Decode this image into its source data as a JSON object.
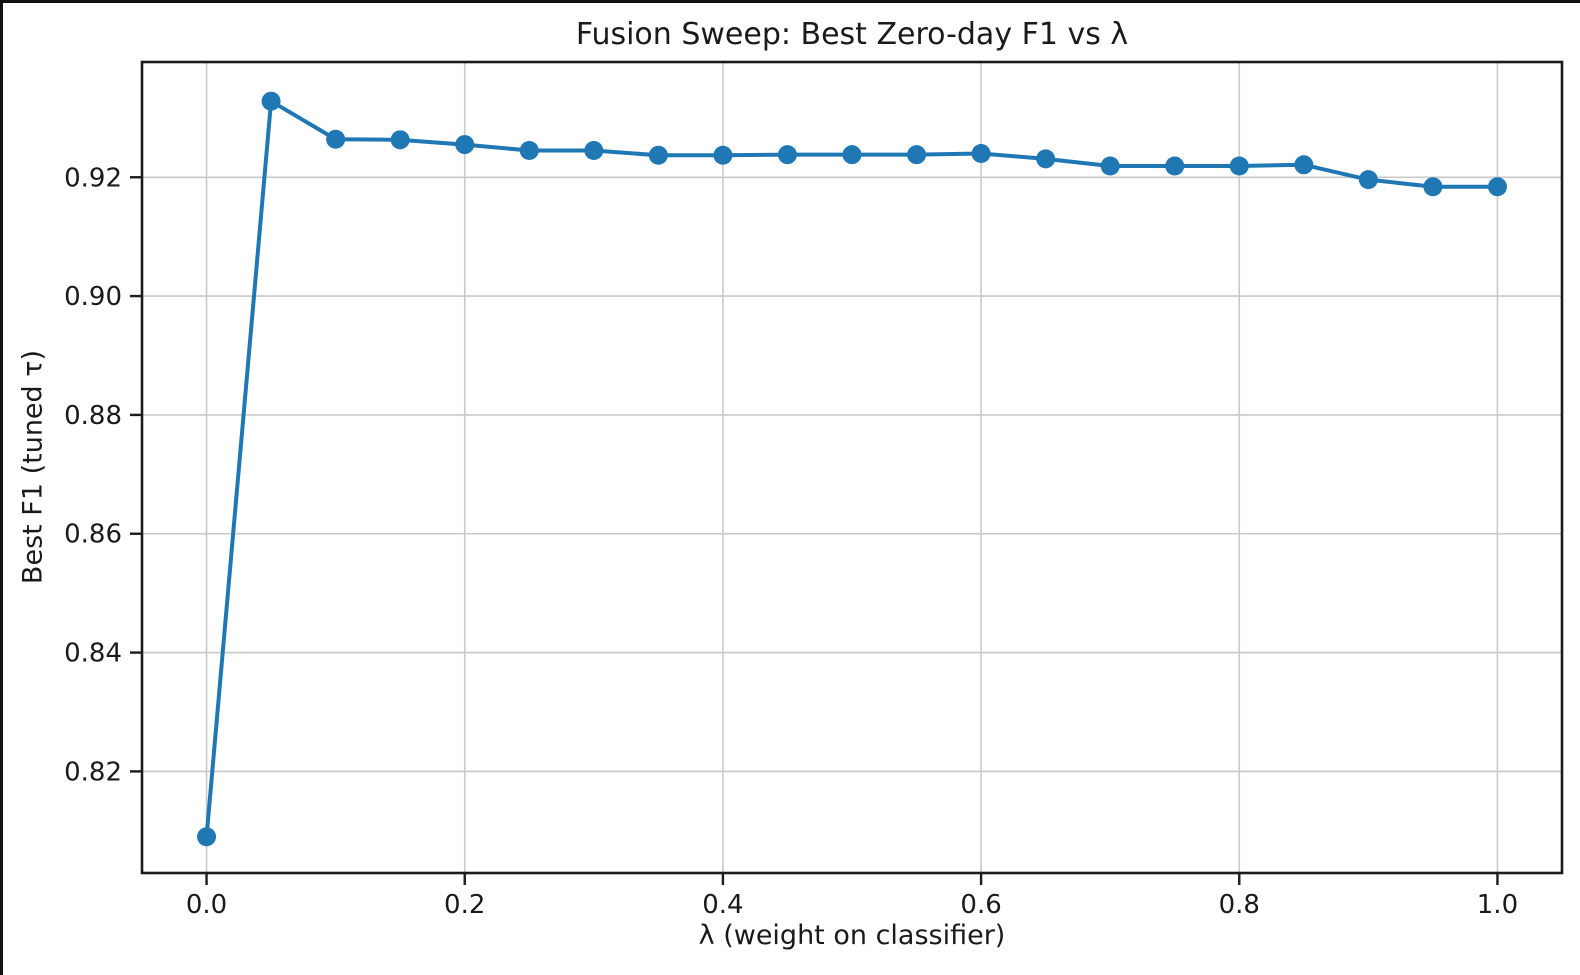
{
  "window": {
    "background_color": "#ffffff",
    "edge_color": "#111111"
  },
  "chart_data": {
    "type": "line",
    "title": "Fusion Sweep: Best Zero-day F1 vs λ",
    "xlabel": "λ (weight on classifier)",
    "ylabel": "Best F1 (tuned τ)",
    "x": [
      0.0,
      0.05,
      0.1,
      0.15,
      0.2,
      0.25,
      0.3,
      0.35,
      0.4,
      0.45,
      0.5,
      0.55,
      0.6,
      0.65,
      0.7,
      0.75,
      0.8,
      0.85,
      0.9,
      0.95,
      1.0
    ],
    "y": [
      0.809,
      0.9328,
      0.9264,
      0.9263,
      0.9255,
      0.9245,
      0.9245,
      0.9237,
      0.9237,
      0.9238,
      0.9238,
      0.9238,
      0.924,
      0.9231,
      0.9219,
      0.9219,
      0.9219,
      0.9221,
      0.9196,
      0.9184,
      0.9184
    ],
    "xlim": [
      -0.05,
      1.05
    ],
    "ylim": [
      0.8029,
      0.9394
    ],
    "xticks": [
      0.0,
      0.2,
      0.4,
      0.6,
      0.8,
      1.0
    ],
    "xtick_labels": [
      "0.0",
      "0.2",
      "0.4",
      "0.6",
      "0.8",
      "1.0"
    ],
    "yticks": [
      0.82,
      0.84,
      0.86,
      0.88,
      0.9,
      0.92
    ],
    "ytick_labels": [
      "0.82",
      "0.84",
      "0.86",
      "0.88",
      "0.90",
      "0.92"
    ],
    "grid": true,
    "legend": null,
    "marker": "circle",
    "line_color": "#1f77b4",
    "grid_color": "#c9c9c9",
    "spine_color": "#1c1c1c",
    "text_color": "#1a1a1a"
  }
}
